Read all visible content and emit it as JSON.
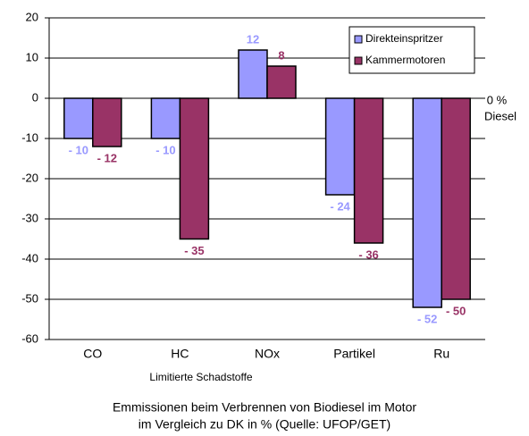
{
  "chart_data": {
    "type": "bar",
    "categories": [
      "CO",
      "HC",
      "NOx",
      "Partikel",
      "Ru"
    ],
    "series": [
      {
        "name": "Direkteinspritzer",
        "color": "#9999ff",
        "values": [
          -10,
          -10,
          12,
          -24,
          -52
        ],
        "value_labels": [
          "- 10",
          "- 10",
          "12",
          "- 24",
          "- 52"
        ]
      },
      {
        "name": "Kammermotoren",
        "color": "#993366",
        "values": [
          -12,
          -35,
          8,
          -36,
          -50
        ],
        "value_labels": [
          "- 12",
          "- 35",
          "8",
          "- 36",
          "- 50"
        ]
      }
    ],
    "ylim": [
      -60,
      20
    ],
    "yticks": [
      -60,
      -50,
      -40,
      -30,
      -20,
      -10,
      0,
      10,
      20
    ],
    "grid": true,
    "xlabel": "Limitierte Schadstoffe",
    "annotations": [
      "0 %",
      "Diesel"
    ],
    "caption": [
      "Emmissionen beim Verbrennen von Biodiesel im Motor",
      "im Vergleich zu DK in % (Quelle: UFOP/GET)"
    ],
    "legend": "top-right"
  }
}
